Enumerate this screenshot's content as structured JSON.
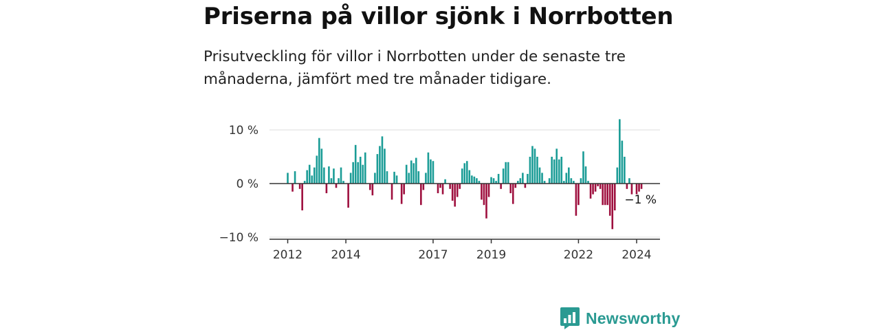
{
  "title": "Priserna på villor sjönk i Norrbotten",
  "subtitle": "Prisutveckling för villor i Norrbotten under de senaste tre månaderna, jämfört med tre månader tidigare.",
  "brand": {
    "name": "Newsworthy",
    "icon": "newsworthy-logo-icon",
    "color": "#2a9a92"
  },
  "chart_data": {
    "type": "bar",
    "title": "Priserna på villor sjönk i Norrbotten",
    "subtitle": "Prisutveckling för villor i Norrbotten under de senaste tre månaderna, jämfört med tre månader tidigare.",
    "xlabel": "",
    "ylabel": "",
    "units": "%",
    "ylim": [
      -10,
      10
    ],
    "yticks": [
      {
        "value": 10,
        "label": "10 %"
      },
      {
        "value": 0,
        "label": "0 %"
      },
      {
        "value": -10,
        "label": "−10 %"
      }
    ],
    "xlim": [
      2011.75,
      2024.6
    ],
    "xticks": [
      {
        "value": 2012,
        "label": "2012"
      },
      {
        "value": 2014,
        "label": "2014"
      },
      {
        "value": 2017,
        "label": "2017"
      },
      {
        "value": 2019,
        "label": "2019"
      },
      {
        "value": 2022,
        "label": "2022"
      },
      {
        "value": 2024,
        "label": "2024"
      }
    ],
    "grid": "horizontal",
    "colors": {
      "positive": "#1a9c96",
      "negative": "#9e0f3e",
      "zero_line": "#333333",
      "grid": "#dddddd"
    },
    "start": {
      "year": 2012,
      "month": 1
    },
    "frequency": "monthly",
    "values": [
      2.0,
      0,
      -1.5,
      2.3,
      0,
      -1.0,
      -5.0,
      0.5,
      2.5,
      3.5,
      1.5,
      3.0,
      5.2,
      8.5,
      6.5,
      3.0,
      -1.8,
      3.2,
      1.0,
      2.8,
      -0.8,
      1.0,
      3.0,
      0.5,
      0,
      -4.5,
      2.0,
      4.0,
      7.2,
      4.0,
      5.0,
      3.5,
      5.8,
      0,
      -1.2,
      -2.2,
      2.0,
      5.5,
      7.0,
      8.8,
      6.5,
      2.3,
      0,
      -3.0,
      2.2,
      1.5,
      0,
      -3.8,
      -2.0,
      3.5,
      2.0,
      4.3,
      3.8,
      4.8,
      2.3,
      -4.0,
      -1.2,
      2.0,
      5.8,
      4.5,
      4.2,
      0,
      -1.8,
      -0.8,
      -2.0,
      0.8,
      0,
      -1.0,
      -3.2,
      -4.3,
      -2.5,
      -1.0,
      2.8,
      3.8,
      4.2,
      2.5,
      1.5,
      1.3,
      1.0,
      0.5,
      -3.0,
      -4.0,
      -6.5,
      -2.5,
      1.2,
      1.0,
      0.5,
      1.8,
      -1.0,
      2.8,
      4.0,
      4.0,
      -1.8,
      -3.8,
      -0.8,
      0.5,
      1.0,
      2.0,
      -0.8,
      1.8,
      5.0,
      7.0,
      6.5,
      5.0,
      3.0,
      2.0,
      0.5,
      0,
      1.0,
      5.0,
      4.5,
      6.5,
      4.5,
      5.0,
      0.5,
      2.0,
      3.0,
      1.0,
      0.5,
      -6.0,
      -4.0,
      1.0,
      6.0,
      3.2,
      0.5,
      -2.8,
      -2.0,
      -1.5,
      -0.5,
      -1.0,
      -4.0,
      -4.0,
      -4.0,
      -6.0,
      -8.5,
      -5.0,
      3.0,
      12.0,
      8.0,
      5.0,
      -1.0,
      1.0,
      -2.0,
      0,
      -2.0,
      -1.5,
      -1.0
    ],
    "last_value_label": "−1 %"
  }
}
